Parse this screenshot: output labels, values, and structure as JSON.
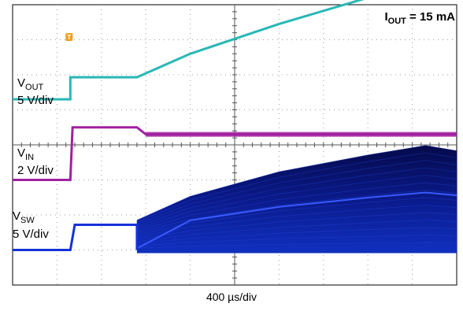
{
  "annotation": {
    "main": "I",
    "sub": "OUT",
    "value": " = 15 mA"
  },
  "trigger_marker": "T",
  "timebase_label": "400 µs/div",
  "channels": [
    {
      "id": "vout",
      "name_main": "V",
      "name_sub": "OUT",
      "scale": "5 V/div",
      "color": "#2ab7b7"
    },
    {
      "id": "vin",
      "name_main": "V",
      "name_sub": "IN",
      "scale": "2 V/div",
      "color": "#a020a0"
    },
    {
      "id": "vsw",
      "name_main": "V",
      "name_sub": "SW",
      "scale": "5 V/div",
      "color": "#0b1a8c"
    }
  ],
  "chart_data": {
    "type": "line",
    "grid": true,
    "x_divisions": 10,
    "y_divisions": 8,
    "xlabel": "400 µs/div",
    "series": [
      {
        "name": "VOUT",
        "x": [
          0,
          1.3,
          2.8,
          4.0,
          6.0,
          8.0,
          10.0
        ],
        "y": [
          5.3,
          5.93,
          5.93,
          6.6,
          7.45,
          8.2,
          8.75
        ]
      },
      {
        "name": "VIN",
        "x": [
          0,
          1.3,
          1.35,
          2.8,
          3.0,
          10.0
        ],
        "y": [
          3.0,
          3.0,
          4.5,
          4.5,
          4.3,
          4.3
        ]
      },
      {
        "name": "VSW",
        "x": [
          0,
          1.3,
          1.4,
          2.8,
          4.0,
          6.0,
          8.0,
          9.3,
          10.0
        ],
        "y": [
          1.0,
          1.0,
          1.72,
          1.72,
          2.4,
          3.1,
          3.58,
          3.85,
          3.7
        ]
      }
    ]
  }
}
